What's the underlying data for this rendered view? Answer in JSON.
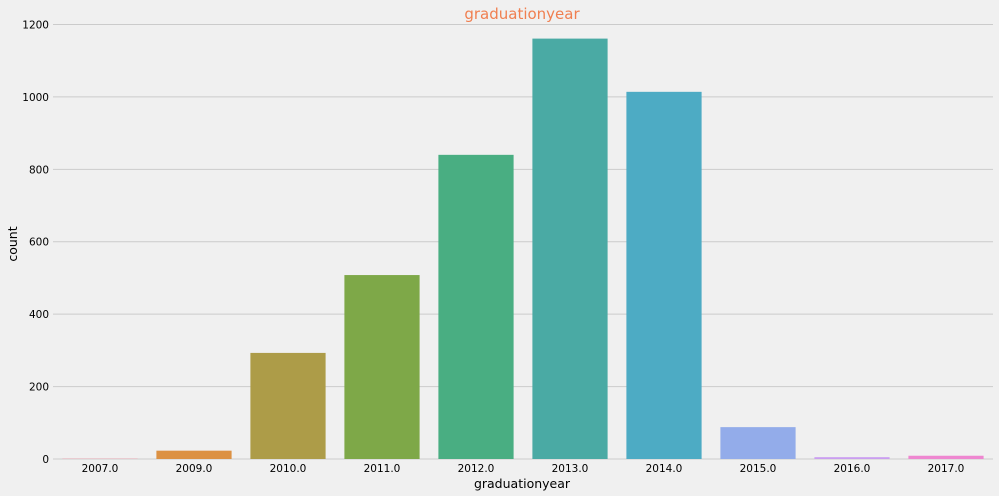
{
  "chart_data": {
    "type": "bar",
    "title": "graduationyear",
    "xlabel": "graduationyear",
    "ylabel": "count",
    "categories": [
      "2007.0",
      "2009.0",
      "2010.0",
      "2011.0",
      "2012.0",
      "2013.0",
      "2014.0",
      "2015.0",
      "2016.0",
      "2017.0"
    ],
    "values": [
      1,
      23,
      293,
      508,
      840,
      1161,
      1014,
      88,
      5,
      9
    ],
    "ylim": [
      0,
      1240
    ],
    "yticks": [
      0,
      200,
      400,
      600,
      800,
      1000,
      1200
    ],
    "grid": true,
    "colors": [
      "#ea97a4",
      "#dc9143",
      "#ad9c48",
      "#7ea848",
      "#49ae82",
      "#4aaaa4",
      "#4dabc4",
      "#93acea",
      "#ca9ef0",
      "#ee87d0"
    ],
    "title_color": "#f07f50",
    "background_color": "#f0f0f0"
  }
}
